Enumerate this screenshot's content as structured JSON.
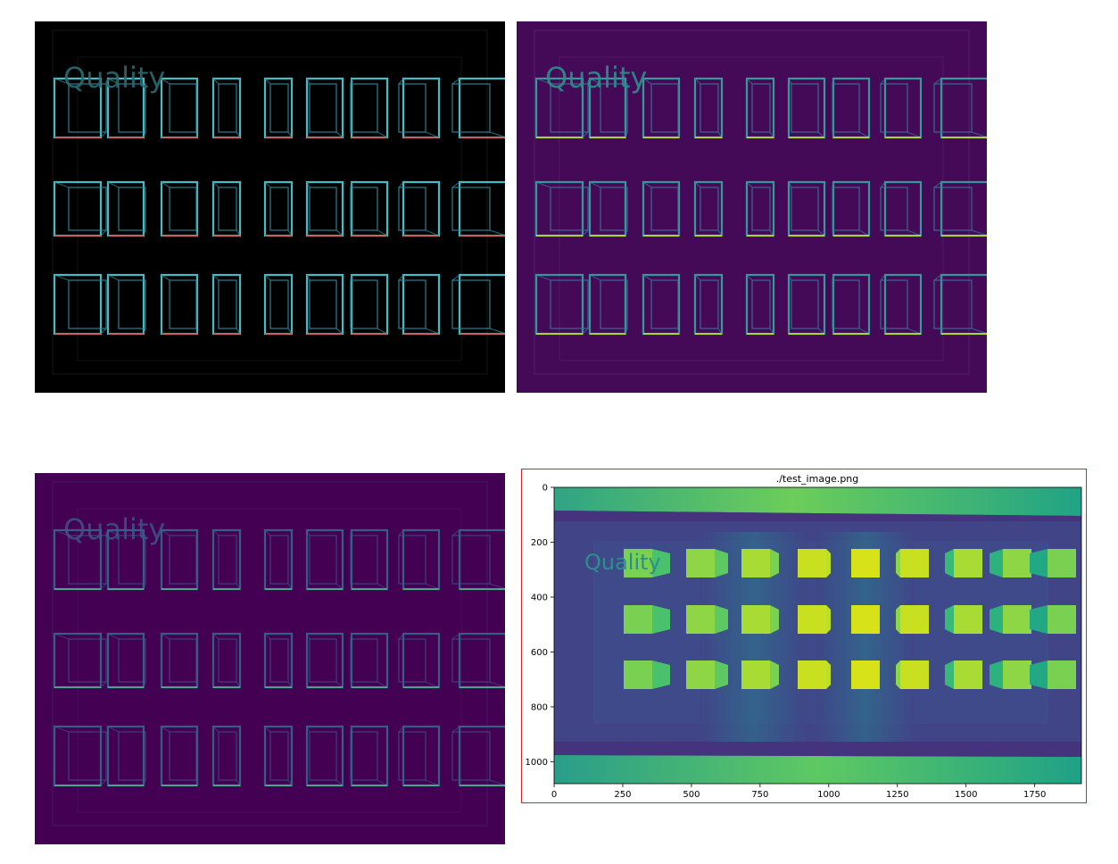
{
  "panels": {
    "edge_rgb": {
      "watermark": "Quality",
      "background": "#000000"
    },
    "edge_magnitude_a": {
      "watermark": "Quality",
      "background": "#440a57"
    },
    "edge_magnitude_b": {
      "watermark": "Quality",
      "background": "#440154"
    }
  },
  "chart": {
    "title": "./test_image.png",
    "watermark": "Quality",
    "colormap": "viridis",
    "frame_color": "#d62728"
  },
  "chart_data": {
    "type": "heatmap",
    "title": "./test_image.png",
    "xlabel": "",
    "ylabel": "",
    "xlim": [
      0,
      1920
    ],
    "ylim": [
      1080,
      0
    ],
    "xticks": [
      0,
      250,
      500,
      750,
      1000,
      1250,
      1500,
      1750
    ],
    "yticks": [
      0,
      200,
      400,
      600,
      800,
      1000
    ],
    "grid": false,
    "cube_grid": {
      "rows": 3,
      "cols": 9
    }
  }
}
